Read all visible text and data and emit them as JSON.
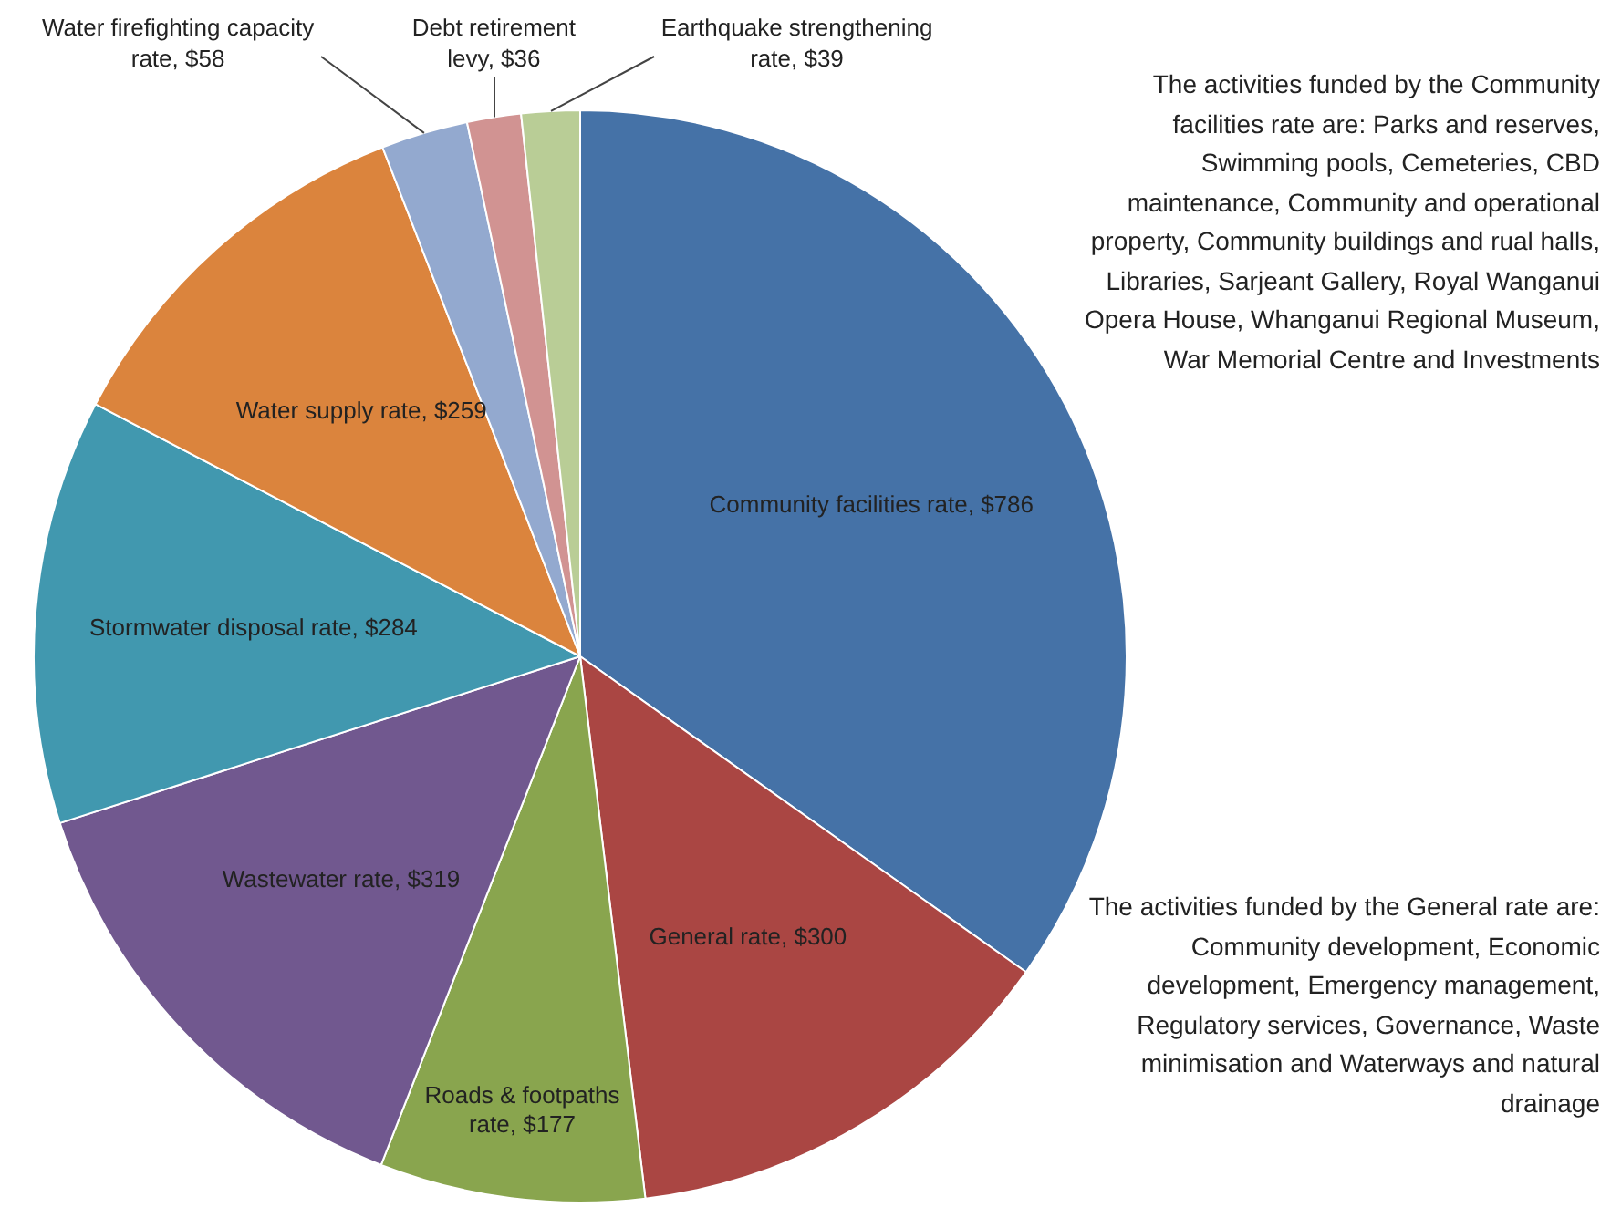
{
  "chart_data": {
    "type": "pie",
    "categories": [
      "Community facilities rate, $786",
      "General rate, $300",
      "Roads & footpaths rate, $177",
      "Wastewater rate, $319",
      "Stormwater disposal rate, $284",
      "Water supply rate, $259",
      "Water firefighting capacity rate, $58",
      "Debt retirement levy, $36",
      "Earthquake strengthening rate, $39"
    ],
    "values": [
      786,
      300,
      177,
      319,
      284,
      259,
      58,
      36,
      39
    ],
    "colors": [
      "#4572a7",
      "#aa4643",
      "#89a54e",
      "#71588f",
      "#4198af",
      "#db843d",
      "#93a9cf",
      "#d19392",
      "#b9cd96"
    ],
    "legend": false,
    "annotations": [
      "The activities funded by the Community facilities rate are: Parks and reserves, Swimming pools, Cemeteries, CBD maintenance, Community and operational property, Community buildings and rual halls, Libraries, Sarjeant Gallery, Royal Wanganui Opera House, Whanganui Regional Museum, War Memorial Centre and Investments",
      "The activities funded by the General rate are: Community development, Economic development, Emergency management, Regulatory services, Governance, Waste minimisation and Waterways and natural drainage"
    ]
  }
}
